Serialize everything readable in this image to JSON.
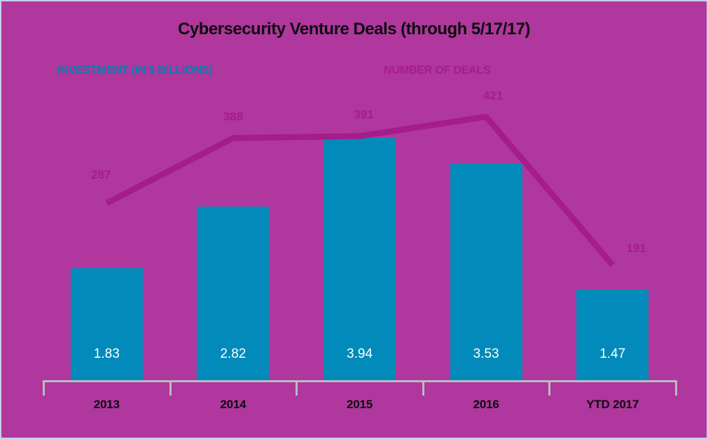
{
  "page": {
    "background_color": "#af379d",
    "border_color": "#c9d0eb",
    "text_color": "#0d0d0d",
    "axis_color": "#b9bcc4"
  },
  "chart_data": {
    "type": "combo",
    "title": "Cybersecurity Venture Deals (through 5/17/17)",
    "categories": [
      "2013",
      "2014",
      "2015",
      "2016",
      "YTD 2017"
    ],
    "series": [
      {
        "name": "INVESTMENT (IN $ BILLIONS)",
        "type": "bar",
        "color": "#028bba",
        "label_text_color": "#0a7dab",
        "value_text_color": "#ffffff",
        "values": [
          1.83,
          2.82,
          3.94,
          3.53,
          1.47
        ],
        "value_labels": [
          "1.83",
          "2.82",
          "3.94",
          "3.53",
          "1.47"
        ]
      },
      {
        "name": "NUMBER OF DEALS",
        "type": "line",
        "color": "#a61c8c",
        "values": [
          287,
          388,
          391,
          421,
          191
        ],
        "value_labels": [
          "287",
          "388",
          "391",
          "421",
          "191"
        ]
      }
    ],
    "legend_position": "top",
    "grid": false,
    "data_labels_shown": true
  }
}
